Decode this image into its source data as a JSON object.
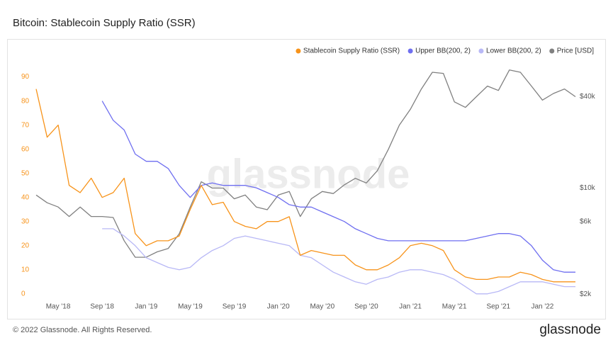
{
  "chart_data": {
    "type": "line",
    "title": "Bitcoin: Stablecoin Supply Ratio (SSR)",
    "watermark": "glassnode",
    "footer": "© 2022 Glassnode. All Rights Reserved.",
    "brand": "glassnode",
    "legend": "top-right",
    "grid": false,
    "x": [
      "2018-03",
      "2018-04",
      "2018-05",
      "2018-06",
      "2018-07",
      "2018-08",
      "2018-09",
      "2018-10",
      "2018-11",
      "2018-12",
      "2019-01",
      "2019-02",
      "2019-03",
      "2019-04",
      "2019-05",
      "2019-06",
      "2019-07",
      "2019-08",
      "2019-09",
      "2019-10",
      "2019-11",
      "2019-12",
      "2020-01",
      "2020-02",
      "2020-03",
      "2020-04",
      "2020-05",
      "2020-06",
      "2020-07",
      "2020-08",
      "2020-09",
      "2020-10",
      "2020-11",
      "2020-12",
      "2021-01",
      "2021-02",
      "2021-03",
      "2021-04",
      "2021-05",
      "2021-06",
      "2021-07",
      "2021-08",
      "2021-09",
      "2021-10",
      "2021-11",
      "2021-12",
      "2022-01",
      "2022-02",
      "2022-03",
      "2022-04"
    ],
    "xlim": [
      "2018-03",
      "2022-04"
    ],
    "xticks": [
      {
        "value": "2018-05",
        "label": "May '18"
      },
      {
        "value": "2018-09",
        "label": "Sep '18"
      },
      {
        "value": "2019-01",
        "label": "Jan '19"
      },
      {
        "value": "2019-05",
        "label": "May '19"
      },
      {
        "value": "2019-09",
        "label": "Sep '19"
      },
      {
        "value": "2020-01",
        "label": "Jan '20"
      },
      {
        "value": "2020-05",
        "label": "May '20"
      },
      {
        "value": "2020-09",
        "label": "Sep '20"
      },
      {
        "value": "2021-01",
        "label": "Jan '21"
      },
      {
        "value": "2021-05",
        "label": "May '21"
      },
      {
        "value": "2021-09",
        "label": "Sep '21"
      },
      {
        "value": "2022-01",
        "label": "Jan '22"
      }
    ],
    "ylim": [
      -3,
      94
    ],
    "yticks": [
      0,
      10,
      20,
      30,
      40,
      50,
      60,
      70,
      80,
      90
    ],
    "y2lim": [
      1800,
      62500
    ],
    "y2scale": "log",
    "y2ticks": [
      {
        "value": 2000,
        "label": "$2k"
      },
      {
        "value": 6000,
        "label": "$6k"
      },
      {
        "value": 10000,
        "label": "$10k"
      },
      {
        "value": 40000,
        "label": "$40k"
      }
    ],
    "series": [
      {
        "name": "Stablecoin Supply Ratio (SSR)",
        "color": "#f7931a",
        "values": [
          85,
          65,
          70,
          45,
          42,
          48,
          40,
          42,
          48,
          25,
          20,
          22,
          22,
          24,
          35,
          45,
          37,
          38,
          30,
          28,
          27,
          30,
          30,
          32,
          16,
          18,
          17,
          16,
          16,
          12,
          10,
          10,
          12,
          15,
          20,
          21,
          20,
          18,
          10,
          7,
          6,
          6,
          7,
          7,
          9,
          8,
          6,
          5,
          5,
          5
        ]
      },
      {
        "name": "Upper BB(200, 2)",
        "color": "#6f6ff0",
        "values": [
          null,
          null,
          null,
          null,
          null,
          null,
          80,
          72,
          68,
          58,
          55,
          55,
          52,
          45,
          40,
          45,
          46,
          45,
          45,
          45,
          44,
          42,
          40,
          37,
          36,
          36,
          34,
          32,
          30,
          27,
          25,
          23,
          22,
          22,
          22,
          22,
          22,
          22,
          22,
          22,
          23,
          24,
          25,
          25,
          24,
          20,
          14,
          10,
          9,
          9
        ]
      },
      {
        "name": "Lower BB(200, 2)",
        "color": "#b8b8f6",
        "values": [
          null,
          null,
          null,
          null,
          null,
          null,
          27,
          27,
          24,
          20,
          15,
          13,
          11,
          10,
          11,
          15,
          18,
          20,
          23,
          24,
          23,
          22,
          21,
          20,
          16,
          15,
          12,
          9,
          7,
          5,
          4,
          6,
          7,
          9,
          10,
          10,
          9,
          8,
          6,
          3,
          0,
          0,
          1,
          3,
          5,
          5,
          5,
          4,
          3,
          3
        ]
      },
      {
        "name": "Price [USD]",
        "color": "#808080",
        "axis": "y2",
        "values": [
          9000,
          8000,
          7500,
          6500,
          7500,
          6500,
          6500,
          6400,
          4500,
          3500,
          3500,
          3800,
          4000,
          5000,
          7500,
          11000,
          10000,
          10000,
          8500,
          9000,
          7500,
          7200,
          9000,
          9500,
          6500,
          8500,
          9500,
          9200,
          10500,
          11600,
          10800,
          13000,
          18000,
          26000,
          33000,
          45000,
          58000,
          57000,
          37000,
          34000,
          40000,
          47000,
          44000,
          60000,
          58000,
          47000,
          38000,
          42000,
          45000,
          40000
        ]
      }
    ]
  }
}
